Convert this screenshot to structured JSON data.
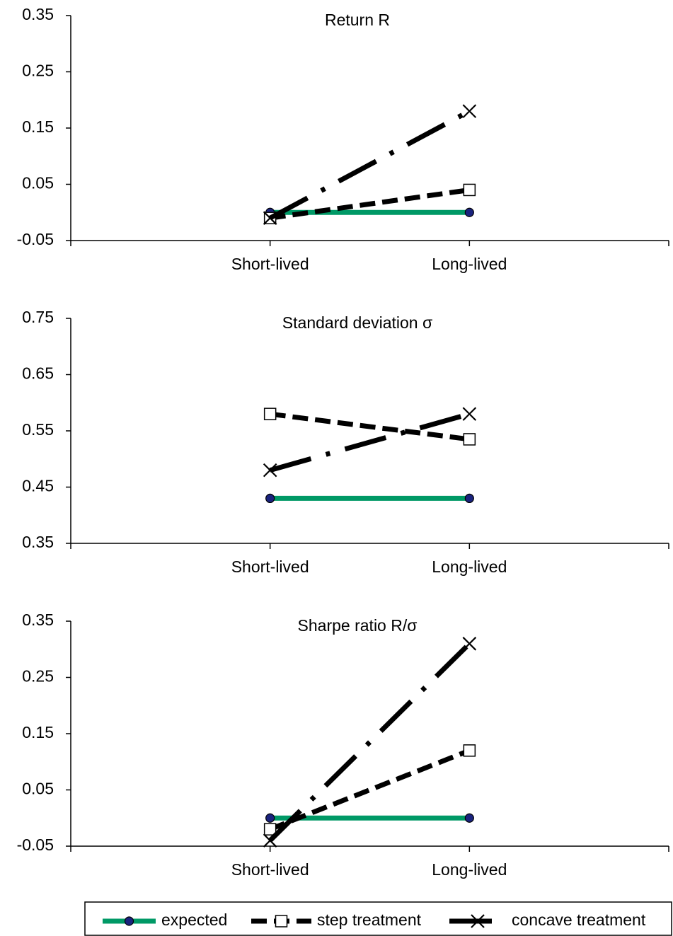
{
  "chart_data": [
    {
      "type": "line",
      "title": "Return  R",
      "categories": [
        "Short-lived",
        "Long-lived"
      ],
      "ylim": [
        -0.05,
        0.35
      ],
      "yticks": [
        -0.05,
        0.05,
        0.15,
        0.25,
        0.35
      ],
      "series": [
        {
          "name": "expected",
          "color": "#009966",
          "dash": "solid",
          "marker": "circle",
          "values": [
            0,
            0
          ]
        },
        {
          "name": "step treatment",
          "color": "#000000",
          "dash": "dash",
          "marker": "square",
          "values": [
            -0.01,
            0.04
          ]
        },
        {
          "name": "concave treatment",
          "color": "#000000",
          "dash": "dashdot",
          "marker": "x",
          "values": [
            -0.01,
            0.18
          ]
        }
      ]
    },
    {
      "type": "line",
      "title": "Standard  deviation  σ",
      "categories": [
        "Short-lived",
        "Long-lived"
      ],
      "ylim": [
        0.35,
        0.75
      ],
      "yticks": [
        0.35,
        0.45,
        0.55,
        0.65,
        0.75
      ],
      "series": [
        {
          "name": "expected",
          "color": "#009966",
          "dash": "solid",
          "marker": "circle",
          "values": [
            0.43,
            0.43
          ]
        },
        {
          "name": "step treatment",
          "color": "#000000",
          "dash": "dash",
          "marker": "square",
          "values": [
            0.58,
            0.535
          ]
        },
        {
          "name": "concave treatment",
          "color": "#000000",
          "dash": "dashdot",
          "marker": "x",
          "values": [
            0.48,
            0.58
          ]
        }
      ]
    },
    {
      "type": "line",
      "title": "Sharpe  ratio R/σ",
      "categories": [
        "Short-lived",
        "Long-lived"
      ],
      "ylim": [
        -0.05,
        0.35
      ],
      "yticks": [
        -0.05,
        0.05,
        0.15,
        0.25,
        0.35
      ],
      "series": [
        {
          "name": "expected",
          "color": "#009966",
          "dash": "solid",
          "marker": "circle",
          "values": [
            0,
            0
          ]
        },
        {
          "name": "step treatment",
          "color": "#000000",
          "dash": "dash",
          "marker": "square",
          "values": [
            -0.02,
            0.12
          ]
        },
        {
          "name": "concave treatment",
          "color": "#000000",
          "dash": "dashdot",
          "marker": "x",
          "values": [
            -0.04,
            0.31
          ]
        }
      ]
    }
  ]
}
